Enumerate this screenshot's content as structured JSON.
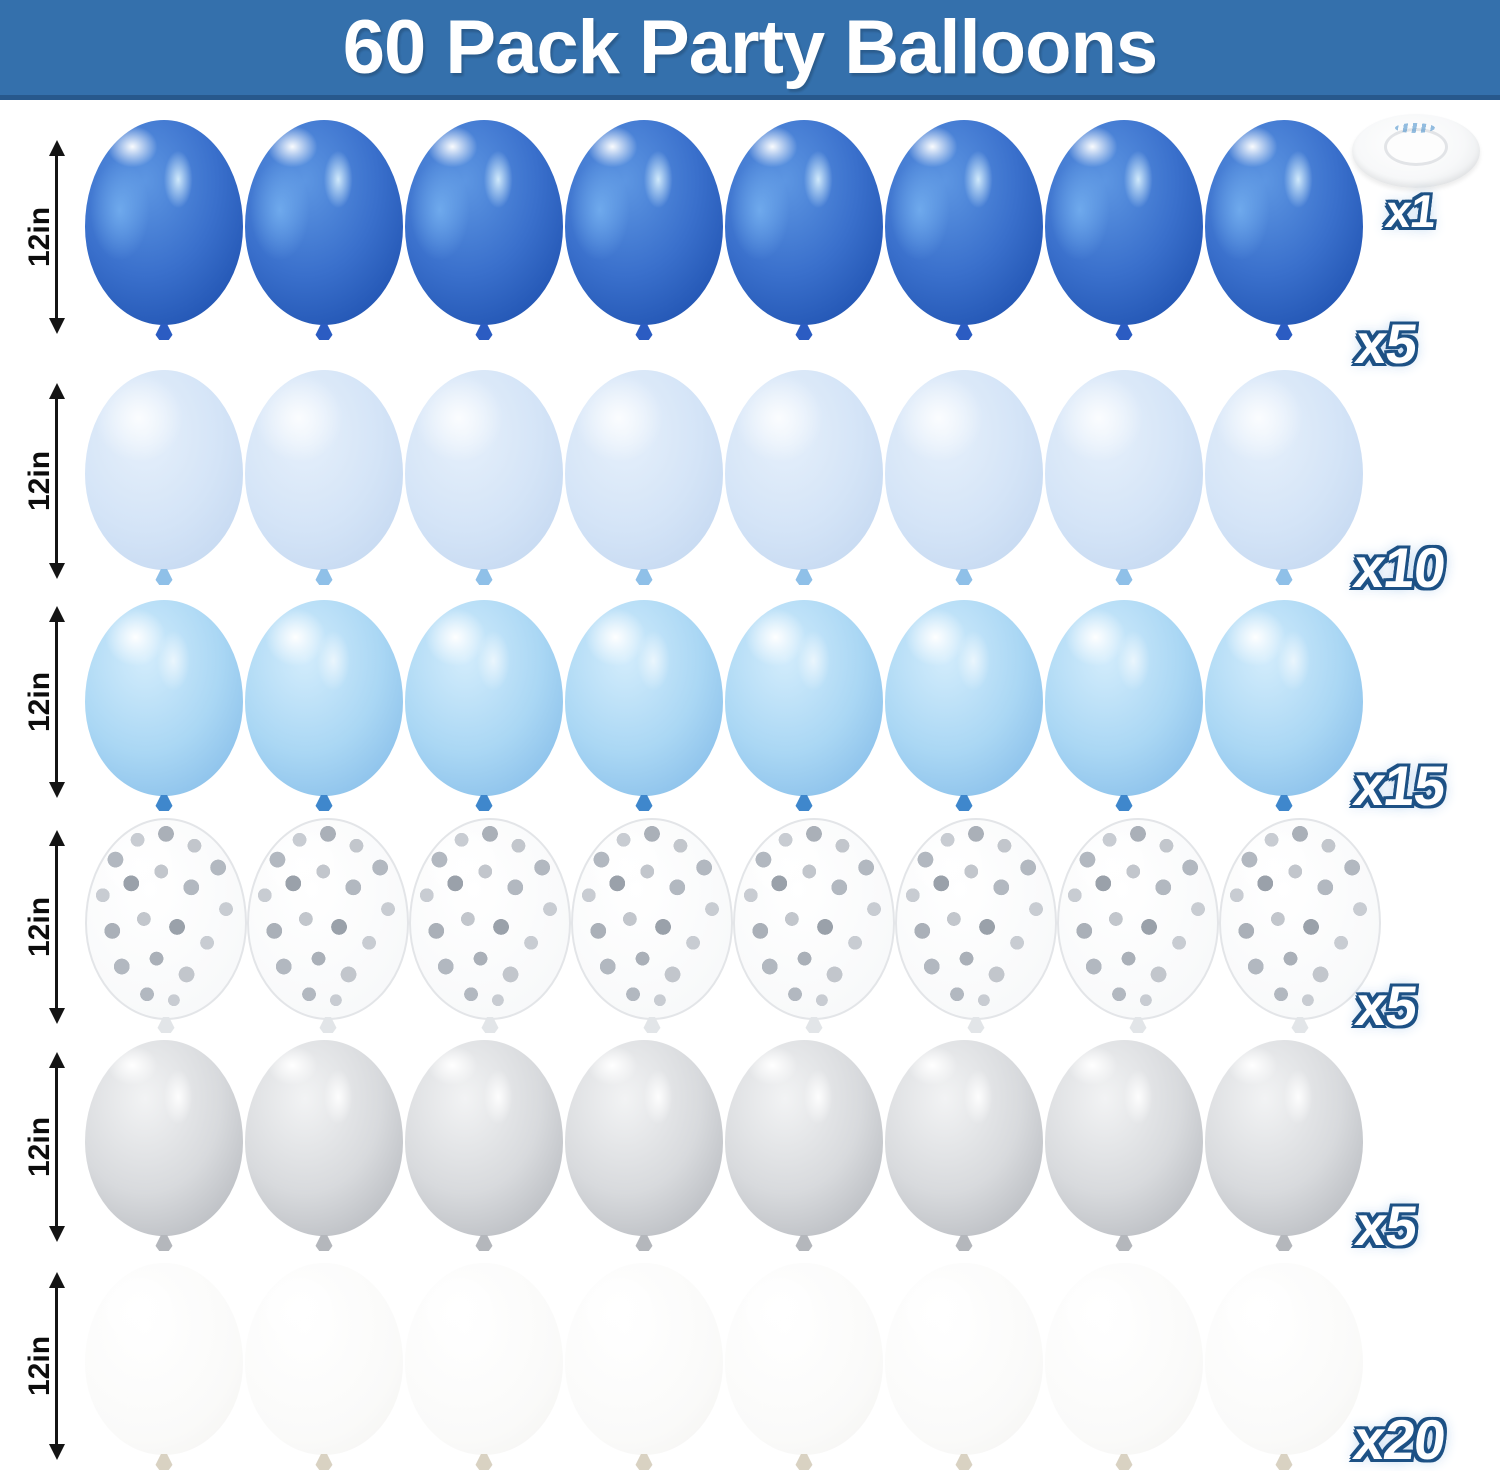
{
  "header": {
    "title": "60 Pack Party Balloons",
    "bg_color": "#3470ac",
    "border_color": "#27588c",
    "text_color": "#ffffff"
  },
  "accessory": {
    "item": "ribbon-roll",
    "quantity_label": "x1"
  },
  "rows": [
    {
      "size_label": "12in",
      "quantity_label": "x5",
      "balloon_finish": "metallic-blue",
      "balloon_color_hex": "#2b62c4"
    },
    {
      "size_label": "12in",
      "quantity_label": "x10",
      "balloon_finish": "pastel-light-blue",
      "balloon_color_hex": "#c9dcf4"
    },
    {
      "size_label": "12in",
      "quantity_label": "x15",
      "balloon_finish": "pearl-light-blue",
      "balloon_color_hex": "#8fc2ea"
    },
    {
      "size_label": "12in",
      "quantity_label": "x5",
      "balloon_finish": "clear-silver-confetti",
      "balloon_color_hex": "#f2f3f5"
    },
    {
      "size_label": "12in",
      "quantity_label": "x5",
      "balloon_finish": "metallic-silver",
      "balloon_color_hex": "#c0c3c8"
    },
    {
      "size_label": "12in",
      "quantity_label": "x20",
      "balloon_finish": "white",
      "balloon_color_hex": "#f6f5f2"
    }
  ],
  "balloons_shown_per_row": 8,
  "quantity_label_style": {
    "fill": "#ffffff",
    "outline": "#1d5185"
  }
}
